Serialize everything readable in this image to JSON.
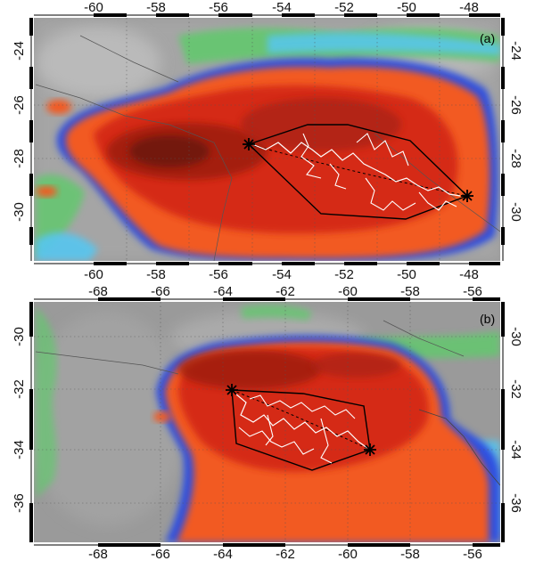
{
  "figure": {
    "panels": [
      {
        "id": "a",
        "label": "(a)",
        "lon_ticks": [
          "-60",
          "-58",
          "-56",
          "-54",
          "-52",
          "-50",
          "-48"
        ],
        "lat_ticks": [
          "-24",
          "-26",
          "-28",
          "-30"
        ],
        "colors": {
          "background": "#9a9a9a",
          "cold_blue": "#2f4fe0",
          "cyan": "#57c6f0",
          "green": "#63c86e",
          "orange": "#f25a20",
          "red": "#d52a18",
          "dark_red": "#9c1c10",
          "mapping": "#ffffff"
        }
      },
      {
        "id": "b",
        "label": "(b)",
        "lon_ticks": [
          "-68",
          "-66",
          "-64",
          "-62",
          "-60",
          "-58",
          "-56"
        ],
        "lat_ticks": [
          "-30",
          "-32",
          "-34",
          "-36"
        ],
        "colors": {
          "background": "#9a9a9a",
          "cold_blue": "#2f4fe0",
          "cyan": "#57c6f0",
          "green": "#63c86e",
          "orange": "#f25a20",
          "red": "#d52a18",
          "dark_red": "#9c1c10",
          "mapping": "#ffffff"
        }
      }
    ]
  }
}
